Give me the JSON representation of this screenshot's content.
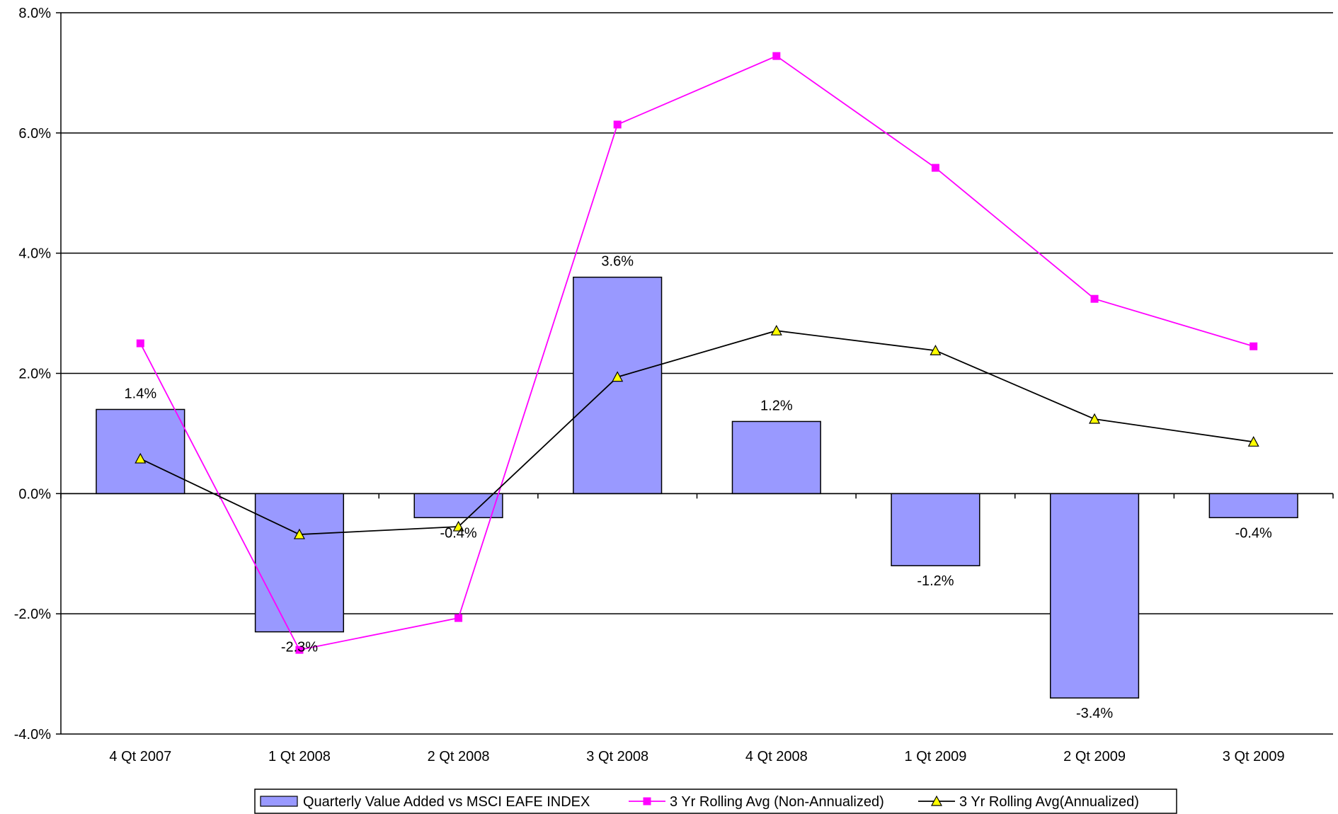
{
  "chart_data": {
    "type": "bar",
    "categories": [
      "4 Qt 2007",
      "1 Qt 2008",
      "2 Qt 2008",
      "3 Qt 2008",
      "4 Qt 2008",
      "1 Qt 2009",
      "2 Qt 2009",
      "3 Qt 2009"
    ],
    "series": [
      {
        "name": "Quarterly Value Added vs MSCI EAFE INDEX",
        "type": "bar",
        "values": [
          1.4,
          -2.3,
          -0.4,
          3.6,
          1.2,
          -1.2,
          -3.4,
          -0.4
        ],
        "data_labels": [
          "1.4%",
          "-2.3%",
          "-0.4%",
          "3.6%",
          "1.2%",
          "-1.2%",
          "-3.4%",
          "-0.4%"
        ],
        "color": "#9999ff"
      },
      {
        "name": "3 Yr Rolling Avg (Non-Annualized)",
        "type": "line",
        "marker": "square",
        "values": [
          2.5,
          -2.6,
          -2.07,
          6.14,
          7.28,
          5.42,
          3.24,
          2.45
        ],
        "color": "#ff00ff"
      },
      {
        "name": "3 Yr Rolling Avg(Annualized)",
        "type": "line",
        "marker": "triangle",
        "values": [
          0.58,
          -0.68,
          -0.55,
          1.94,
          2.71,
          2.38,
          1.24,
          0.86
        ],
        "color": "#000000",
        "marker_fill": "#ffff00"
      }
    ],
    "y_ticks": [
      "-4.0%",
      "-2.0%",
      "0.0%",
      "2.0%",
      "4.0%",
      "6.0%",
      "8.0%"
    ],
    "ylim": [
      -4,
      8
    ],
    "gridlines": true,
    "legend_position": "bottom",
    "title": "",
    "xlabel": "",
    "ylabel": ""
  }
}
